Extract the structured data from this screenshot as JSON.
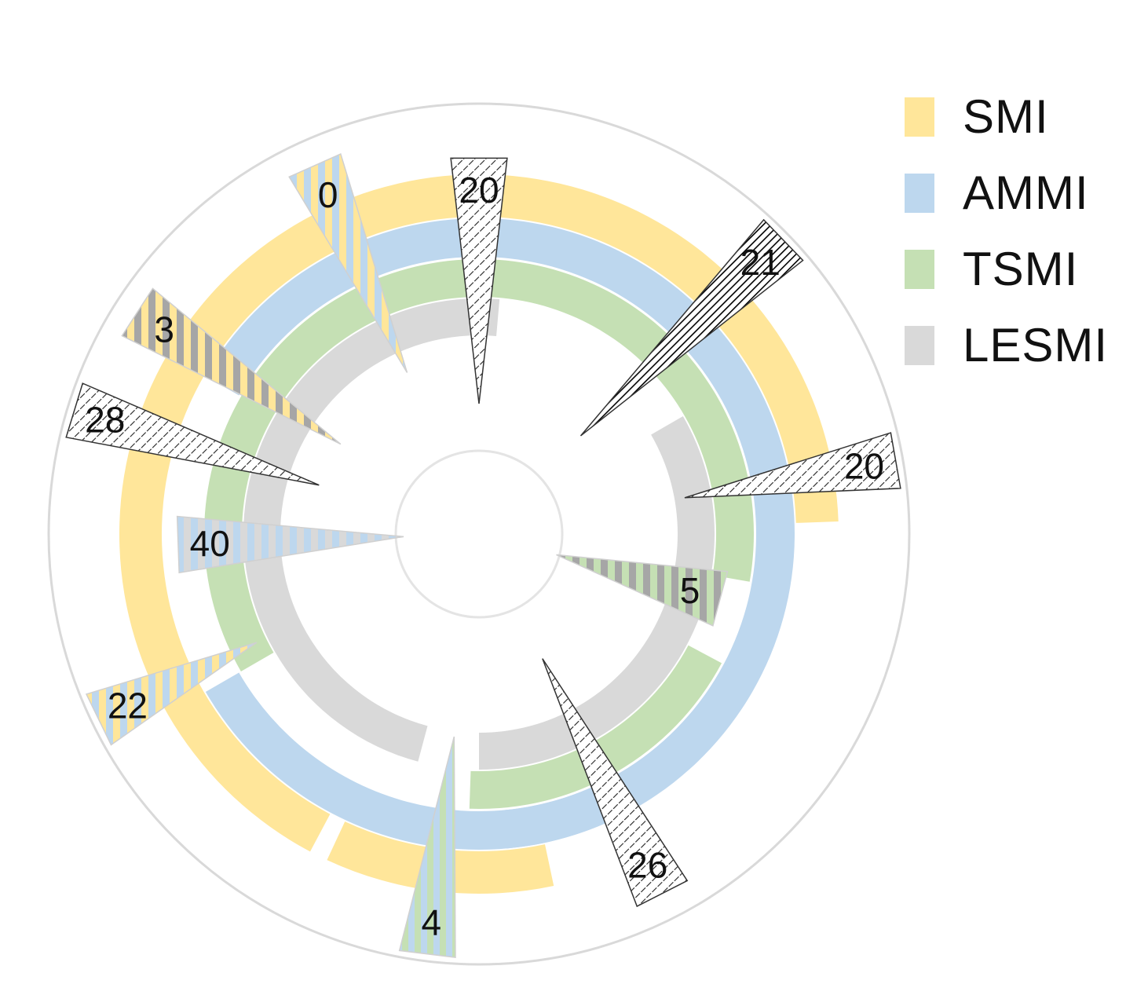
{
  "chart_data": {
    "type": "radial-bar",
    "series": [
      {
        "name": "SMI",
        "color": "#FFE69A"
      },
      {
        "name": "AMMI",
        "color": "#BDD7EE"
      },
      {
        "name": "TSMI",
        "color": "#C5E0B4"
      },
      {
        "name": "LESMI",
        "color": "#D9D9D9"
      }
    ],
    "rings": [
      {
        "series": "SMI",
        "arcs": [
          [
            -152,
            88
          ],
          [
            -192,
            -155
          ]
        ]
      },
      {
        "series": "AMMI",
        "arcs": [
          [
            -60,
            175
          ],
          [
            -210,
            -120
          ]
        ]
      },
      {
        "series": "TSMI",
        "arcs": [
          [
            -120,
            100
          ],
          [
            -242,
            -178
          ]
        ]
      },
      {
        "series": "LESMI",
        "arcs": [
          [
            -165,
            5
          ],
          [
            -300,
            -180
          ]
        ]
      }
    ],
    "data_labels": [
      {
        "value": "20",
        "angle": 0,
        "tip": 166,
        "base": 480,
        "pattern": "hatch"
      },
      {
        "value": "21",
        "angle": 46,
        "tip": 180,
        "base": 540,
        "pattern": "hatch-dark"
      },
      {
        "value": "20",
        "angle": 80,
        "tip": 266,
        "base": 540,
        "pattern": "hatch"
      },
      {
        "value": "5",
        "angle": 105,
        "tip": 102,
        "base": 320,
        "pattern": "stripe-green-gray"
      },
      {
        "value": "26",
        "angle": 153,
        "tip": 178,
        "base": 515,
        "pattern": "hatch"
      },
      {
        "value": "4",
        "angle": 187,
        "tip": 260,
        "base": 540,
        "pattern": "stripe-green-blue"
      },
      {
        "value": "22",
        "angle": 244,
        "tip": 315,
        "base": 540,
        "pattern": "stripe-yellow-blue"
      },
      {
        "value": "40",
        "angle": 268,
        "tip": 96,
        "base": 385,
        "pattern": "stripe-gray-blue"
      },
      {
        "value": "28",
        "angle": 287,
        "tip": 213,
        "base": 540,
        "pattern": "hatch"
      },
      {
        "value": "3",
        "angle": 303,
        "tip": 210,
        "base": 520,
        "pattern": "stripe-yellow-gray"
      },
      {
        "value": "0",
        "angle": 336,
        "tip": 225,
        "base": 515,
        "pattern": "stripe-yellow-blue"
      }
    ]
  }
}
